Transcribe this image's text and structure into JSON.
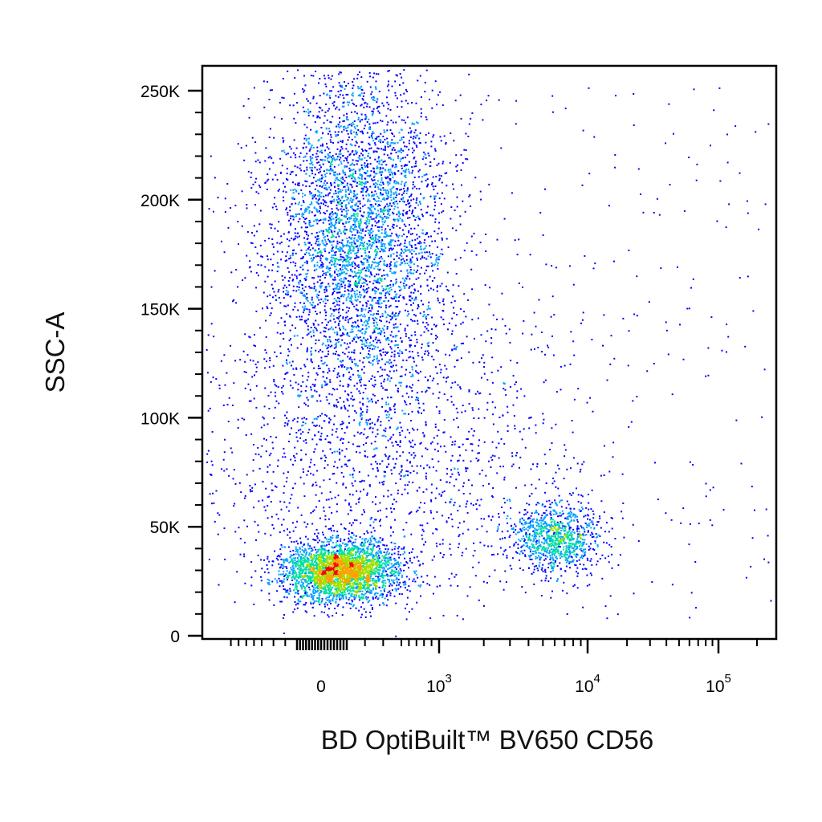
{
  "chart_data": {
    "type": "scatter",
    "subtype": "flow-cytometry density dot plot (pseudocolor)",
    "title": "",
    "xlabel": "BD OptiBuilt™ BV650 CD56",
    "ylabel": "SSC-A",
    "x_scale": "biexponential (logicle)",
    "y_scale": "linear",
    "xlim": [
      -300,
      200000
    ],
    "ylim": [
      -2000,
      262144
    ],
    "y_ticks": [
      {
        "value": 0,
        "label": "0"
      },
      {
        "value": 50000,
        "label": "50K"
      },
      {
        "value": 100000,
        "label": "100K"
      },
      {
        "value": 150000,
        "label": "150K"
      },
      {
        "value": 200000,
        "label": "200K"
      },
      {
        "value": 250000,
        "label": "250K"
      }
    ],
    "x_ticks": [
      {
        "value": 0,
        "label": "0",
        "exponent": ""
      },
      {
        "value": 1000,
        "label": "10",
        "exponent": "3"
      },
      {
        "value": 10000,
        "label": "10",
        "exponent": "4"
      },
      {
        "value": 100000,
        "label": "10",
        "exponent": "5"
      }
    ],
    "color_scale": [
      "#0000ff",
      "#00a0ff",
      "#00e0a0",
      "#a0e000",
      "#ffa000",
      "#ff0000"
    ],
    "populations": [
      {
        "center_x": 150,
        "center_y": 30000,
        "spread_x": 200,
        "spread_y": 7000,
        "events": 3000
      },
      {
        "center_x": 250,
        "center_y": 185000,
        "spread_x": 300,
        "spread_y": 40000,
        "events": 4200
      },
      {
        "center_x": 6000,
        "center_y": 45000,
        "spread_x": 5000,
        "spread_y": 8000,
        "events": 1000
      },
      {
        "center_x": 300,
        "center_y": 85000,
        "spread_x": 700,
        "spread_y": 35000,
        "events": 1500
      }
    ],
    "grid": false,
    "legend": "none"
  }
}
